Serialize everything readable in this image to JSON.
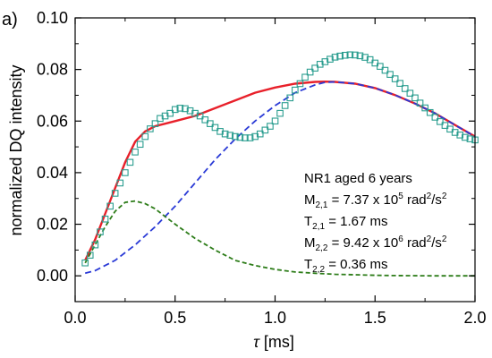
{
  "panel_label": "a)",
  "chart_data": {
    "type": "line",
    "title": "",
    "xlabel_symbol": "τ",
    "xlabel_unit": " [ms]",
    "ylabel": "normalized DQ intensity",
    "xlim": [
      0.0,
      2.0
    ],
    "ylim": [
      -0.01,
      0.1
    ],
    "x_ticks": [
      0.0,
      0.5,
      1.0,
      1.5,
      2.0
    ],
    "x_tick_labels": [
      "0.0",
      "0.5",
      "1.0",
      "1.5",
      "2.0"
    ],
    "y_ticks": [
      0.0,
      0.02,
      0.04,
      0.06,
      0.08,
      0.1
    ],
    "y_tick_labels": [
      "0.00",
      "0.02",
      "0.04",
      "0.06",
      "0.08",
      "0.10"
    ],
    "grid": false,
    "legend": "none",
    "series": [
      {
        "kind": "markers",
        "marker": "open-square",
        "color": "#2a9d8f",
        "x": [
          0.05,
          0.075,
          0.1,
          0.125,
          0.15,
          0.175,
          0.2,
          0.225,
          0.25,
          0.275,
          0.3,
          0.325,
          0.35,
          0.375,
          0.4,
          0.425,
          0.45,
          0.475,
          0.5,
          0.525,
          0.55,
          0.575,
          0.6,
          0.625,
          0.65,
          0.675,
          0.7,
          0.725,
          0.75,
          0.775,
          0.8,
          0.825,
          0.85,
          0.875,
          0.9,
          0.925,
          0.95,
          0.975,
          1.0,
          1.025,
          1.05,
          1.075,
          1.1,
          1.125,
          1.15,
          1.175,
          1.2,
          1.225,
          1.25,
          1.275,
          1.3,
          1.325,
          1.35,
          1.375,
          1.4,
          1.425,
          1.45,
          1.475,
          1.5,
          1.525,
          1.55,
          1.575,
          1.6,
          1.625,
          1.65,
          1.675,
          1.7,
          1.725,
          1.75,
          1.775,
          1.8,
          1.825,
          1.85,
          1.875,
          1.9,
          1.925,
          1.95,
          1.975,
          2.0
        ],
        "y": [
          0.005,
          0.008,
          0.012,
          0.017,
          0.022,
          0.027,
          0.032,
          0.036,
          0.04,
          0.044,
          0.048,
          0.051,
          0.054,
          0.057,
          0.059,
          0.061,
          0.062,
          0.063,
          0.0645,
          0.065,
          0.0648,
          0.064,
          0.063,
          0.062,
          0.0605,
          0.059,
          0.0575,
          0.056,
          0.055,
          0.0545,
          0.054,
          0.0537,
          0.0535,
          0.0535,
          0.054,
          0.055,
          0.0565,
          0.058,
          0.06,
          0.063,
          0.066,
          0.069,
          0.072,
          0.0745,
          0.077,
          0.079,
          0.0805,
          0.082,
          0.083,
          0.084,
          0.0848,
          0.0852,
          0.0855,
          0.0857,
          0.0856,
          0.0853,
          0.0847,
          0.0838,
          0.0825,
          0.0812,
          0.0797,
          0.0781,
          0.0764,
          0.0746,
          0.0726,
          0.0708,
          0.069,
          0.067,
          0.0651,
          0.0633,
          0.0615,
          0.0598,
          0.0583,
          0.0569,
          0.0556,
          0.0546,
          0.0537,
          0.0531,
          0.0527
        ]
      },
      {
        "kind": "line",
        "style": "solid",
        "color": "#e8202a",
        "x": [
          0.05,
          0.1,
          0.15,
          0.2,
          0.25,
          0.3,
          0.35,
          0.4,
          0.45,
          0.5,
          0.6,
          0.7,
          0.8,
          0.9,
          1.0,
          1.1,
          1.2,
          1.25,
          1.3,
          1.4,
          1.5,
          1.6,
          1.7,
          1.8,
          1.9,
          2.0
        ],
        "y": [
          0.006,
          0.014,
          0.024,
          0.034,
          0.044,
          0.052,
          0.056,
          0.058,
          0.059,
          0.06,
          0.062,
          0.065,
          0.068,
          0.071,
          0.073,
          0.0745,
          0.0752,
          0.0753,
          0.0752,
          0.0745,
          0.0728,
          0.0701,
          0.0668,
          0.063,
          0.0585,
          0.054
        ]
      },
      {
        "kind": "line",
        "style": "dashed",
        "color": "#2a3ad6",
        "x": [
          0.05,
          0.1,
          0.2,
          0.3,
          0.4,
          0.5,
          0.6,
          0.7,
          0.8,
          0.9,
          1.0,
          1.1,
          1.2,
          1.25,
          1.3,
          1.4,
          1.5,
          1.6,
          1.7,
          1.8,
          1.9,
          2.0
        ],
        "y": [
          0.001,
          0.002,
          0.006,
          0.012,
          0.019,
          0.027,
          0.036,
          0.045,
          0.053,
          0.06,
          0.066,
          0.071,
          0.074,
          0.075,
          0.0752,
          0.0745,
          0.0728,
          0.0701,
          0.0668,
          0.063,
          0.0585,
          0.054
        ]
      },
      {
        "kind": "line",
        "style": "dashed",
        "color": "#2e7d1a",
        "x": [
          0.05,
          0.1,
          0.15,
          0.2,
          0.25,
          0.3,
          0.35,
          0.4,
          0.5,
          0.6,
          0.7,
          0.8,
          0.9,
          1.0,
          1.1,
          1.2,
          1.3,
          1.4,
          1.5,
          1.6,
          1.8,
          2.0
        ],
        "y": [
          0.005,
          0.012,
          0.019,
          0.025,
          0.0285,
          0.029,
          0.028,
          0.026,
          0.02,
          0.0145,
          0.01,
          0.006,
          0.004,
          0.0025,
          0.0015,
          0.001,
          0.0006,
          0.0004,
          0.0002,
          0.0001,
          0.0,
          0.0
        ]
      }
    ]
  },
  "annotation": {
    "line1": "NR1 aged 6 years",
    "m21_label": "M",
    "m21_sub": "2,1",
    "m21_value": " = 7.37 x 10",
    "m21_exp": "5",
    "m21_unit": " rad",
    "m21_unit_exp": "2",
    "m21_unit_tail": "/s",
    "m21_unit_tail_exp": "2",
    "t21_label": "T",
    "t21_sub": "2,1",
    "t21_value": " = 1.67 ms",
    "m22_label": "M",
    "m22_sub": "2,2",
    "m22_value": " = 9.42 x 10",
    "m22_exp": "6",
    "m22_unit": " rad",
    "m22_unit_exp": "2",
    "m22_unit_tail": "/s",
    "m22_unit_tail_exp": "2",
    "t22_label": "T",
    "t22_sub": "2,2",
    "t22_value": " = 0.36 ms"
  }
}
